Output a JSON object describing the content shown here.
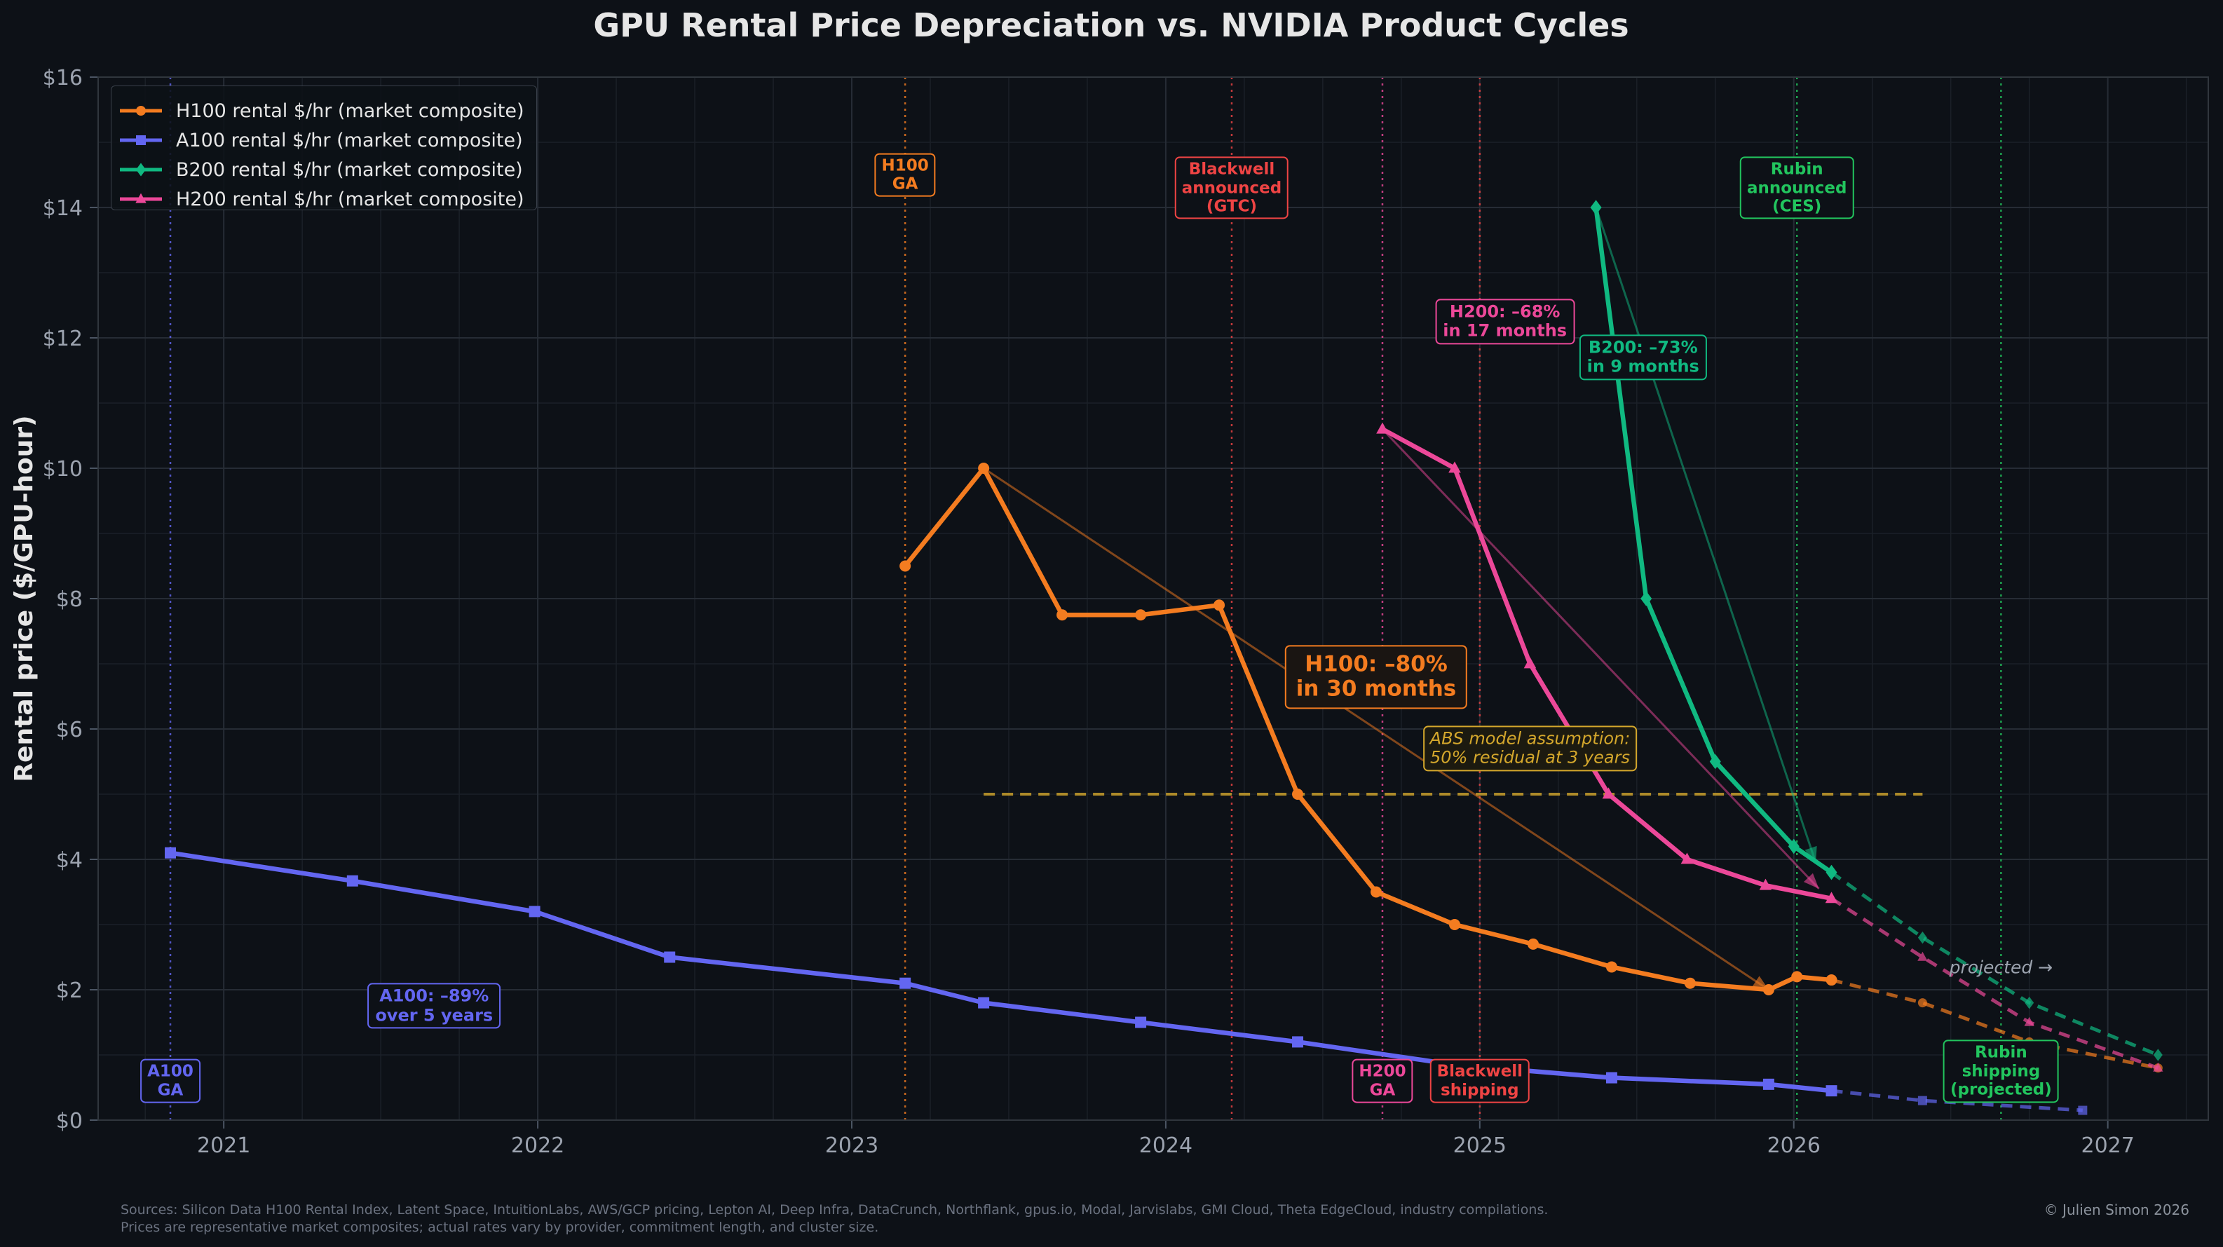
{
  "chart_data": {
    "type": "line",
    "title": "GPU Rental Price Depreciation vs. NVIDIA Product Cycles",
    "xlabel": "",
    "ylabel": "Rental price ($/GPU-hour)",
    "xlim": [
      2020.6,
      2027.32
    ],
    "ylim": [
      0,
      16
    ],
    "x_ticks": [
      2021,
      2022,
      2023,
      2024,
      2025,
      2026,
      2027
    ],
    "x_tick_labels": [
      "2021",
      "2022",
      "2023",
      "2024",
      "2025",
      "2026",
      "2027"
    ],
    "y_ticks": [
      0,
      2,
      4,
      6,
      8,
      10,
      12,
      14,
      16
    ],
    "y_tick_labels": [
      "$0",
      "$2",
      "$4",
      "$6",
      "$8",
      "$10",
      "$12",
      "$14",
      "$16"
    ],
    "grid": true,
    "legend_position": "top-left",
    "series": [
      {
        "name": "H100 rental $/hr (market composite)",
        "color": "#f47c20",
        "marker": "circle",
        "x": [
          2023.17,
          2023.42,
          2023.67,
          2023.92,
          2024.17,
          2024.42,
          2024.67,
          2024.92,
          2025.17,
          2025.42,
          2025.67,
          2025.92,
          2026.01,
          2026.12
        ],
        "values": [
          8.5,
          10.0,
          7.75,
          7.75,
          7.9,
          5.0,
          3.5,
          3.0,
          2.7,
          2.35,
          2.1,
          2.0,
          2.2,
          2.15
        ],
        "projection_x": [
          2026.12,
          2026.41,
          2026.75,
          2027.16
        ],
        "projection_values": [
          2.15,
          1.8,
          1.2,
          0.8
        ]
      },
      {
        "name": "A100 rental $/hr (market composite)",
        "color": "#6366f1",
        "marker": "square",
        "x": [
          2020.83,
          2021.41,
          2021.99,
          2022.42,
          2023.17,
          2023.42,
          2023.92,
          2024.42,
          2024.92,
          2025.42,
          2025.92,
          2026.12
        ],
        "values": [
          4.1,
          3.67,
          3.2,
          2.5,
          2.1,
          1.8,
          1.5,
          1.2,
          0.85,
          0.65,
          0.55,
          0.45
        ],
        "projection_x": [
          2026.12,
          2026.41,
          2026.92
        ],
        "projection_values": [
          0.45,
          0.3,
          0.15
        ]
      },
      {
        "name": "B200 rental $/hr (market composite)",
        "color": "#10b981",
        "marker": "diamond",
        "x": [
          2025.37,
          2025.53,
          2025.75,
          2026.0,
          2026.12
        ],
        "values": [
          14.0,
          8.0,
          5.5,
          4.2,
          3.8
        ],
        "projection_x": [
          2026.12,
          2026.41,
          2026.75,
          2027.16
        ],
        "projection_values": [
          3.8,
          2.8,
          1.8,
          1.0
        ]
      },
      {
        "name": "H200 rental $/hr (market composite)",
        "color": "#ec4899",
        "marker": "triangle",
        "x": [
          2024.69,
          2024.92,
          2025.16,
          2025.41,
          2025.66,
          2025.91,
          2026.12
        ],
        "values": [
          10.6,
          10.0,
          7.0,
          5.0,
          4.0,
          3.6,
          3.4
        ],
        "projection_x": [
          2026.12,
          2026.41,
          2026.75,
          2027.16
        ],
        "projection_values": [
          3.4,
          2.5,
          1.5,
          0.8
        ]
      }
    ],
    "abs_assumption_line": {
      "x_start": 2023.42,
      "x_end": 2026.41,
      "value": 5.0,
      "color": "#d4a72c"
    },
    "events": [
      {
        "x": 2020.83,
        "color": "#6366f1",
        "lines": [
          "A100",
          "GA"
        ],
        "label_y": 0.6
      },
      {
        "x": 2023.17,
        "color": "#f47c20",
        "lines": [
          "H100",
          "GA"
        ],
        "label_y": 14.5
      },
      {
        "x": 2024.21,
        "color": "#ef4444",
        "lines": [
          "Blackwell",
          "announced",
          "(GTC)"
        ],
        "label_y": 14.3
      },
      {
        "x": 2024.69,
        "color": "#ec4899",
        "lines": [
          "H200",
          "GA"
        ],
        "label_y": 0.6
      },
      {
        "x": 2025.0,
        "color": "#ef4444",
        "lines": [
          "Blackwell",
          "shipping"
        ],
        "label_y": 0.6
      },
      {
        "x": 2026.01,
        "color": "#22c55e",
        "lines": [
          "Rubin",
          "announced",
          "(CES)"
        ],
        "label_y": 14.3
      },
      {
        "x": 2026.66,
        "color": "#22c55e",
        "lines": [
          "Rubin",
          "shipping",
          "(projected)"
        ],
        "label_y": 0.75
      }
    ],
    "annotations": [
      {
        "lines": [
          "H100: –80%",
          "in 30 months"
        ],
        "color": "#f47c20",
        "x": 2024.67,
        "y": 6.8,
        "size": "large"
      },
      {
        "lines": [
          "A100: –89%",
          "over 5 years"
        ],
        "color": "#6366f1",
        "x": 2021.67,
        "y": 1.75,
        "size": "small"
      },
      {
        "lines": [
          "H200: –68%",
          "in 17 months"
        ],
        "color": "#ec4899",
        "x": 2025.08,
        "y": 12.25,
        "size": "small"
      },
      {
        "lines": [
          "B200: –73%",
          "in 9 months"
        ],
        "color": "#10b981",
        "x": 2025.52,
        "y": 11.7,
        "size": "small"
      }
    ],
    "abs_note": {
      "lines": [
        "ABS model assumption:",
        "50% residual at 3 years"
      ],
      "x": 2025.16,
      "y": 5.7
    },
    "arrows": [
      {
        "from": [
          2023.42,
          10.0
        ],
        "to": [
          2025.92,
          2.0
        ],
        "color": "#f47c20"
      },
      {
        "from": [
          2024.69,
          10.6
        ],
        "to": [
          2026.08,
          3.55
        ],
        "color": "#ec4899"
      },
      {
        "from": [
          2025.37,
          14.0
        ],
        "to": [
          2026.07,
          3.95
        ],
        "color": "#10b981"
      }
    ],
    "projected_label": {
      "text": "projected →",
      "x": 2026.66,
      "y": 2.35
    }
  },
  "footer": {
    "sources_line1": "Sources: Silicon Data H100 Rental Index, Latent Space, IntuitionLabs, AWS/GCP pricing, Lepton AI, Deep Infra, DataCrunch, Northflank, gpus.io, Modal, Jarvislabs, GMI Cloud, Theta EdgeCloud, industry compilations.",
    "sources_line2": "Prices are representative market composites; actual rates vary by provider, commitment length, and cluster size.",
    "copyright": "© Julien Simon 2026"
  }
}
